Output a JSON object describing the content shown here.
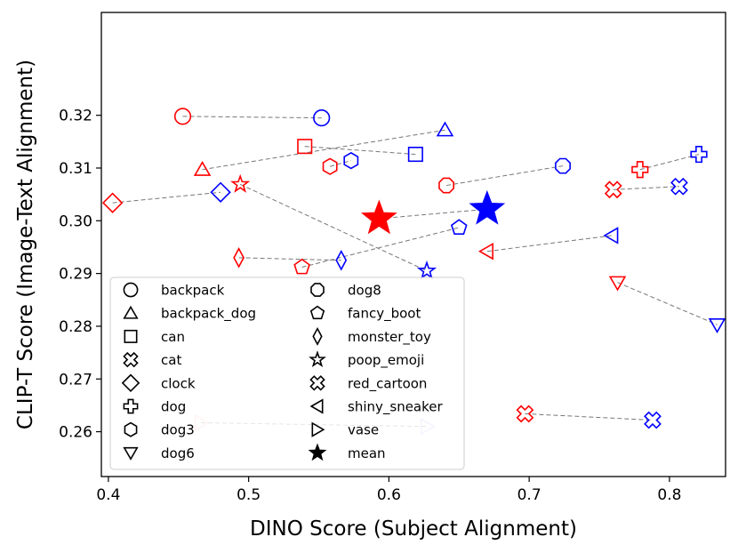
{
  "chart_data": {
    "type": "scatter",
    "xlabel": "DINO Score (Subject Alignment)",
    "ylabel": "CLIP-T Score (Image-Text Alignment)",
    "xlim": [
      0.395,
      0.84
    ],
    "ylim": [
      0.2515,
      0.3395
    ],
    "xticks": [
      "0.4",
      "0.5",
      "0.6",
      "0.7",
      "0.8"
    ],
    "yticks": [
      "0.26",
      "0.27",
      "0.28",
      "0.29",
      "0.30",
      "0.31",
      "0.32"
    ],
    "grid": false,
    "legend_placement": "lower-left",
    "series_colors": {
      "first": "#ff0000",
      "second": "#0000ff"
    },
    "legend": [
      {
        "label": "backpack",
        "marker": "circle"
      },
      {
        "label": "backpack_dog",
        "marker": "triangle-up"
      },
      {
        "label": "can",
        "marker": "square"
      },
      {
        "label": "cat",
        "marker": "x-filled"
      },
      {
        "label": "clock",
        "marker": "diamond"
      },
      {
        "label": "dog",
        "marker": "plus-filled"
      },
      {
        "label": "dog3",
        "marker": "hexagon"
      },
      {
        "label": "dog6",
        "marker": "triangle-down"
      },
      {
        "label": "dog8",
        "marker": "octagon"
      },
      {
        "label": "fancy_boot",
        "marker": "pentagon"
      },
      {
        "label": "monster_toy",
        "marker": "thin-diamond"
      },
      {
        "label": "poop_emoji",
        "marker": "star"
      },
      {
        "label": "red_cartoon",
        "marker": "x-filled"
      },
      {
        "label": "shiny_sneaker",
        "marker": "triangle-left"
      },
      {
        "label": "vase",
        "marker": "triangle-right"
      },
      {
        "label": "mean",
        "marker": "star-filled"
      }
    ],
    "points": [
      {
        "label": "backpack",
        "marker": "circle",
        "red": [
          0.453,
          0.3198
        ],
        "blue": [
          0.552,
          0.3195
        ]
      },
      {
        "label": "backpack_dog",
        "marker": "triangle-up",
        "red": [
          0.467,
          0.3097
        ],
        "blue": [
          0.64,
          0.3172
        ]
      },
      {
        "label": "can",
        "marker": "square",
        "red": [
          0.54,
          0.3141
        ],
        "blue": [
          0.619,
          0.3126
        ]
      },
      {
        "label": "cat",
        "marker": "x-filled",
        "red": [
          0.697,
          0.2634
        ],
        "blue": [
          0.788,
          0.2622
        ]
      },
      {
        "label": "clock",
        "marker": "diamond",
        "red": [
          0.403,
          0.3034
        ],
        "blue": [
          0.48,
          0.3054
        ]
      },
      {
        "label": "dog",
        "marker": "plus-filled",
        "red": [
          0.779,
          0.3097
        ],
        "blue": [
          0.821,
          0.3126
        ]
      },
      {
        "label": "dog3",
        "marker": "hexagon",
        "red": [
          0.558,
          0.3103
        ],
        "blue": [
          0.573,
          0.3114
        ]
      },
      {
        "label": "dog6",
        "marker": "triangle-down",
        "red": [
          0.763,
          0.2883
        ],
        "blue": [
          0.834,
          0.2803
        ]
      },
      {
        "label": "dog8",
        "marker": "octagon",
        "red": [
          0.641,
          0.3067
        ],
        "blue": [
          0.724,
          0.3104
        ]
      },
      {
        "label": "fancy_boot",
        "marker": "pentagon",
        "red": [
          0.538,
          0.2912
        ],
        "blue": [
          0.65,
          0.2987
        ]
      },
      {
        "label": "monster_toy",
        "marker": "thin-diamond",
        "red": [
          0.493,
          0.293
        ],
        "blue": [
          0.566,
          0.2925
        ]
      },
      {
        "label": "poop_emoji",
        "marker": "star",
        "red": [
          0.494,
          0.3069
        ],
        "blue": [
          0.627,
          0.2905
        ]
      },
      {
        "label": "red_cartoon",
        "marker": "x-filled",
        "red": [
          0.76,
          0.3059
        ],
        "blue": [
          0.807,
          0.3065
        ]
      },
      {
        "label": "shiny_sneaker",
        "marker": "triangle-left",
        "red": [
          0.67,
          0.2942
        ],
        "blue": [
          0.759,
          0.2972
        ]
      },
      {
        "label": "vase",
        "marker": "triangle-right",
        "red": [
          0.466,
          0.2617
        ],
        "blue": [
          0.627,
          0.261
        ],
        "faded": true
      }
    ],
    "mean": {
      "red": [
        0.593,
        0.3004
      ],
      "blue": [
        0.67,
        0.3022
      ]
    }
  }
}
